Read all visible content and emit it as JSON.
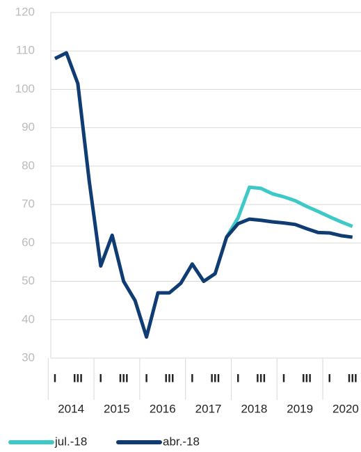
{
  "chart_data": {
    "type": "line",
    "categories": [
      "I",
      null,
      "III",
      null,
      "I",
      null,
      "III",
      null,
      "I",
      null,
      "III",
      null,
      "I",
      null,
      "III",
      null,
      "I",
      null,
      "III",
      null,
      "I",
      null,
      "III",
      null,
      "I",
      null,
      "III"
    ],
    "years": [
      "2014",
      "2015",
      "2016",
      "2017",
      "2018",
      "2019",
      "2020"
    ],
    "series": [
      {
        "name": "jul.-18",
        "color": "#3ec9c9",
        "values": [
          null,
          null,
          null,
          null,
          null,
          null,
          null,
          null,
          null,
          null,
          null,
          null,
          null,
          null,
          null,
          61.5,
          66.5,
          74.5,
          74.2,
          72.8,
          72,
          71,
          69.5,
          68.2,
          66.8,
          65.5,
          64.3
        ]
      },
      {
        "name": "abr.-18",
        "color": "#0f3d73",
        "values": [
          108,
          109.5,
          101.5,
          76,
          54,
          62,
          50,
          45,
          35.5,
          47,
          47,
          49.5,
          54.5,
          50,
          52,
          61.5,
          65,
          66.2,
          65.9,
          65.5,
          65.2,
          64.8,
          63.7,
          62.7,
          62.6,
          61.9,
          61.5
        ]
      }
    ],
    "ylim": [
      30,
      120
    ],
    "yticks": [
      30,
      40,
      50,
      60,
      70,
      80,
      90,
      100,
      110,
      120
    ],
    "grid": true
  }
}
